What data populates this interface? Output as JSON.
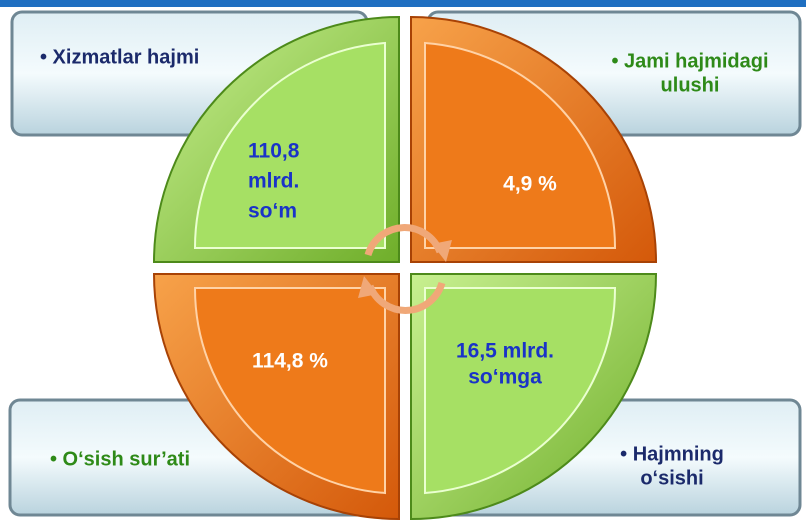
{
  "quadrants": [
    {
      "label": [
        "• Xizmatlar hajmi"
      ],
      "value": [
        "110,8",
        "mlrd.",
        "so‘m"
      ]
    },
    {
      "label": [
        "• Jami hajmidagi",
        "ulushi"
      ],
      "value": [
        "4,9 %"
      ]
    },
    {
      "label": [
        "• O‘sish sur’ati"
      ],
      "value": [
        "114,8 %"
      ]
    },
    {
      "label": [
        "• Hajmning",
        "o‘sishi"
      ],
      "value": [
        "16,5 mlrd.",
        "so‘mga"
      ]
    }
  ]
}
